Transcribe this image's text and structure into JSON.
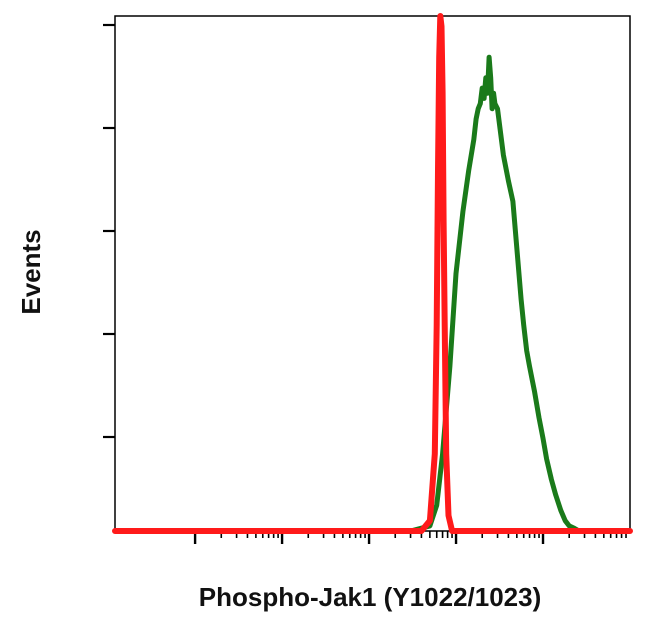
{
  "chart_data": {
    "type": "line",
    "title": "",
    "xlabel": "Phospho-Jak1 (Y1022/1023)",
    "ylabel": "Events",
    "xscale": "log",
    "xlim": [
      0.12,
      100000
    ],
    "ylim": [
      0,
      100
    ],
    "grid": false,
    "legend": "none",
    "series": [
      {
        "color": "#ff1a1a",
        "x": [
          400,
          500,
          570,
          600,
          620,
          640,
          660,
          680,
          700,
          720,
          740,
          770,
          820,
          900,
          1000,
          5000
        ],
        "y": [
          0,
          2,
          15,
          40,
          70,
          92,
          100,
          98,
          85,
          60,
          40,
          15,
          3,
          0,
          0,
          0
        ]
      },
      {
        "color": "#1a7a1a",
        "x": [
          300,
          500,
          600,
          700,
          850,
          1000,
          1200,
          1400,
          1600,
          1700,
          1800,
          1900,
          2000,
          2100,
          2200,
          2300,
          2400,
          2500,
          2600,
          2700,
          2800,
          3000,
          3500,
          4000,
          4500,
          5000,
          5600,
          6000,
          6500,
          7000,
          8000,
          9000,
          10000,
          11000,
          12500,
          14000,
          16000,
          18000,
          20000,
          23000,
          26000,
          30000,
          35000,
          40000,
          50000,
          60000,
          80000
        ],
        "y": [
          0,
          1,
          5,
          15,
          32,
          50,
          62,
          70,
          76,
          80,
          82,
          83,
          86,
          84,
          88,
          85,
          92,
          88,
          82,
          85,
          83,
          82,
          73,
          68,
          64,
          55,
          45,
          40,
          35,
          32,
          27,
          22,
          18,
          14,
          10,
          7,
          4,
          2,
          1,
          0.5,
          0,
          0,
          0,
          0,
          0,
          0,
          0
        ]
      }
    ]
  }
}
